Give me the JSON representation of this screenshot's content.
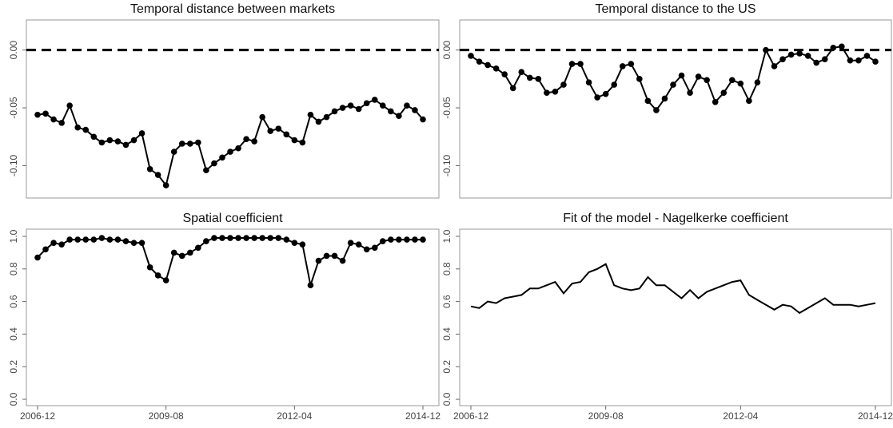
{
  "chart_data": [
    {
      "type": "line",
      "title": "Temporal distance between markets",
      "markers": true,
      "color": "#000000",
      "reference_line": 0,
      "categories": [
        null,
        null,
        null,
        null,
        null,
        null,
        null,
        null,
        null,
        null,
        null,
        null,
        null,
        null,
        null,
        null,
        null,
        null,
        null,
        null,
        null,
        null,
        null,
        null,
        null,
        null,
        null,
        null,
        null,
        null,
        null,
        null,
        null,
        null,
        null,
        null,
        null,
        null,
        null,
        null,
        null,
        null,
        null,
        null,
        null,
        null,
        null,
        null,
        null
      ],
      "values": [
        -0.056,
        -0.055,
        -0.06,
        -0.063,
        -0.048,
        -0.067,
        -0.069,
        -0.075,
        -0.08,
        -0.078,
        -0.079,
        -0.082,
        -0.078,
        -0.072,
        -0.103,
        -0.108,
        -0.117,
        -0.088,
        -0.081,
        -0.081,
        -0.08,
        -0.104,
        -0.098,
        -0.093,
        -0.088,
        -0.085,
        -0.077,
        -0.079,
        -0.058,
        -0.07,
        -0.068,
        -0.073,
        -0.078,
        -0.08,
        -0.056,
        -0.062,
        -0.058,
        -0.053,
        -0.05,
        -0.048,
        -0.051,
        -0.046,
        -0.043,
        -0.048,
        -0.053,
        -0.057,
        -0.048,
        -0.052,
        -0.06
      ],
      "ylim": [
        -0.128,
        0.026
      ],
      "yticks": [
        {
          "value": 0,
          "label": "0.00"
        },
        -0.05,
        {
          "value": -0.1,
          "label": "-0.10"
        }
      ]
    },
    {
      "type": "line",
      "title": "Temporal distance to the US",
      "markers": true,
      "color": "#000000",
      "reference_line": 0,
      "categories": [
        null,
        null,
        null,
        null,
        null,
        null,
        null,
        null,
        null,
        null,
        null,
        null,
        null,
        null,
        null,
        null,
        null,
        null,
        null,
        null,
        null,
        null,
        null,
        null,
        null,
        null,
        null,
        null,
        null,
        null,
        null,
        null,
        null,
        null,
        null,
        null,
        null,
        null,
        null,
        null,
        null,
        null,
        null,
        null,
        null,
        null,
        null,
        null,
        null
      ],
      "values": [
        -0.005,
        -0.01,
        -0.013,
        -0.016,
        -0.021,
        -0.033,
        -0.019,
        -0.024,
        -0.025,
        -0.037,
        -0.036,
        -0.03,
        -0.012,
        -0.012,
        -0.028,
        -0.041,
        -0.038,
        -0.03,
        -0.014,
        -0.012,
        -0.025,
        -0.044,
        -0.052,
        -0.042,
        -0.03,
        -0.022,
        -0.037,
        -0.023,
        -0.026,
        -0.045,
        -0.037,
        -0.026,
        -0.029,
        -0.044,
        -0.028,
        0.0,
        -0.014,
        -0.008,
        -0.004,
        -0.003,
        -0.005,
        -0.011,
        -0.008,
        0.002,
        0.003,
        -0.009,
        -0.009,
        -0.005,
        -0.01
      ],
      "ylim": [
        -0.128,
        0.026
      ],
      "yticks": [
        {
          "value": 0,
          "label": "0.00"
        },
        -0.05,
        {
          "value": -0.1,
          "label": "-0.10"
        }
      ]
    },
    {
      "type": "line",
      "title": "Spatial coefficient",
      "markers": true,
      "color": "#000000",
      "categories": [
        "2006-12",
        null,
        null,
        null,
        null,
        null,
        null,
        null,
        null,
        null,
        null,
        null,
        null,
        null,
        null,
        null,
        "2009-08",
        null,
        null,
        null,
        null,
        null,
        null,
        null,
        null,
        null,
        null,
        null,
        null,
        null,
        null,
        null,
        "2012-04",
        null,
        null,
        null,
        null,
        null,
        null,
        null,
        null,
        null,
        null,
        null,
        null,
        null,
        null,
        null,
        "2014-12"
      ],
      "values": [
        0.87,
        0.92,
        0.96,
        0.95,
        0.98,
        0.98,
        0.98,
        0.98,
        0.99,
        0.98,
        0.98,
        0.97,
        0.96,
        0.96,
        0.81,
        0.76,
        0.73,
        0.9,
        0.88,
        0.9,
        0.93,
        0.97,
        0.99,
        0.99,
        0.99,
        0.99,
        0.99,
        0.99,
        0.99,
        0.99,
        0.99,
        0.98,
        0.96,
        0.95,
        0.7,
        0.85,
        0.88,
        0.88,
        0.85,
        0.96,
        0.95,
        0.92,
        0.93,
        0.97,
        0.98,
        0.98,
        0.98,
        0.98,
        0.98
      ],
      "ylim": [
        -0.039,
        1.044
      ],
      "yticks": [
        {
          "value": 0,
          "label": "0.0"
        },
        0.2,
        0.4,
        0.6,
        0.8,
        {
          "value": 1,
          "label": "1.0"
        }
      ]
    },
    {
      "type": "line",
      "title": "Fit of the model - Nagelkerke coefficient",
      "markers": false,
      "color": "#000000",
      "categories": [
        "2006-12",
        null,
        null,
        null,
        null,
        null,
        null,
        null,
        null,
        null,
        null,
        null,
        null,
        null,
        null,
        null,
        "2009-08",
        null,
        null,
        null,
        null,
        null,
        null,
        null,
        null,
        null,
        null,
        null,
        null,
        null,
        null,
        null,
        "2012-04",
        null,
        null,
        null,
        null,
        null,
        null,
        null,
        null,
        null,
        null,
        null,
        null,
        null,
        null,
        null,
        "2014-12"
      ],
      "values": [
        0.57,
        0.56,
        0.6,
        0.59,
        0.62,
        0.63,
        0.64,
        0.68,
        0.68,
        0.7,
        0.72,
        0.65,
        0.71,
        0.72,
        0.78,
        0.8,
        0.83,
        0.7,
        0.68,
        0.67,
        0.68,
        0.75,
        0.7,
        0.7,
        0.66,
        0.62,
        0.67,
        0.62,
        0.66,
        0.68,
        0.7,
        0.72,
        0.73,
        0.64,
        0.61,
        0.58,
        0.55,
        0.58,
        0.57,
        0.53,
        0.56,
        0.59,
        0.62,
        0.58,
        0.58,
        0.58,
        0.57,
        0.58,
        0.59
      ],
      "ylim": [
        -0.039,
        1.044
      ],
      "yticks": [
        {
          "value": 0,
          "label": "0.0"
        },
        0.2,
        0.4,
        0.6,
        0.8,
        {
          "value": 1,
          "label": "1.0"
        }
      ]
    }
  ]
}
